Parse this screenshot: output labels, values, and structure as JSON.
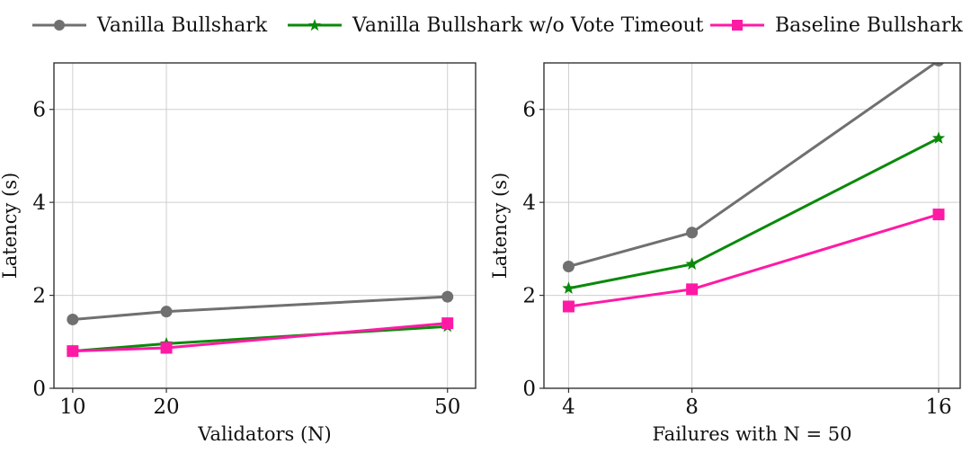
{
  "legend": {
    "items": [
      {
        "label": "Vanilla Bullshark",
        "color": "#707070",
        "marker": "circle"
      },
      {
        "label": "Vanilla Bullshark w/o Vote Timeout",
        "color": "#0a8a0a",
        "marker": "star"
      },
      {
        "label": "Baseline Bullshark",
        "color": "#ff1aa5",
        "marker": "square"
      }
    ]
  },
  "chart_data": [
    {
      "type": "line",
      "xlabel": "Validators (N)",
      "ylabel": "Latency (s)",
      "x": [
        10,
        20,
        50
      ],
      "xticks": [
        "10",
        "20",
        "50"
      ],
      "xlim": [
        8,
        53
      ],
      "ylim": [
        0,
        7
      ],
      "yticks": [
        "0",
        "2",
        "4",
        "6"
      ],
      "grid": true,
      "series": [
        {
          "name": "Vanilla Bullshark",
          "color": "#707070",
          "marker": "circle",
          "values": [
            1.48,
            1.65,
            1.97
          ]
        },
        {
          "name": "Vanilla Bullshark w/o Vote Timeout",
          "color": "#0a8a0a",
          "marker": "star",
          "values": [
            0.8,
            0.96,
            1.33
          ]
        },
        {
          "name": "Baseline Bullshark",
          "color": "#ff1aa5",
          "marker": "square",
          "values": [
            0.8,
            0.87,
            1.4
          ]
        }
      ]
    },
    {
      "type": "line",
      "xlabel": "Failures with N = 50",
      "ylabel": "Latency (s)",
      "x": [
        4,
        8,
        16
      ],
      "xticks": [
        "4",
        "8",
        "16"
      ],
      "xlim": [
        3.2,
        16.7
      ],
      "ylim": [
        0,
        7
      ],
      "yticks": [
        "0",
        "2",
        "4",
        "6"
      ],
      "grid": true,
      "series": [
        {
          "name": "Vanilla Bullshark",
          "color": "#707070",
          "marker": "circle",
          "values": [
            2.62,
            3.35,
            7.05
          ]
        },
        {
          "name": "Vanilla Bullshark w/o Vote Timeout",
          "color": "#0a8a0a",
          "marker": "star",
          "values": [
            2.15,
            2.67,
            5.38
          ]
        },
        {
          "name": "Baseline Bullshark",
          "color": "#ff1aa5",
          "marker": "square",
          "values": [
            1.76,
            2.13,
            3.74
          ]
        }
      ]
    }
  ]
}
